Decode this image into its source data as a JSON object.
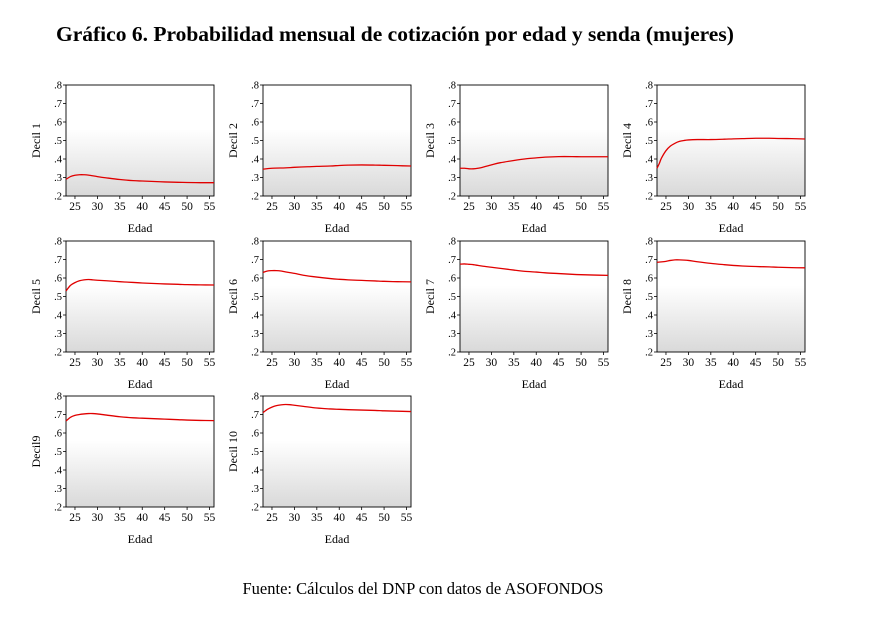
{
  "title": "Gráfico 6. Probabilidad mensual de cotización por edad y senda (mujeres)",
  "source": "Fuente: Cálculos del DNP con datos de ASOFONDOS",
  "colors": {
    "line": "#e00000",
    "gradient_top": "#ffffff",
    "gradient_bottom": "#d9d9d9",
    "frame": "#000000"
  },
  "chart_data": [
    {
      "type": "line",
      "title": "",
      "ylabel": "Decil 1",
      "xlabel": "Edad",
      "xlim": [
        23,
        56
      ],
      "ylim": [
        0.2,
        0.8
      ],
      "xticks": [
        25,
        30,
        35,
        40,
        45,
        50,
        55
      ],
      "xtick_labels": [
        "25",
        "30",
        "35",
        "40",
        "45",
        "50",
        "55"
      ],
      "yticks": [
        0.2,
        0.3,
        0.4,
        0.5,
        0.6,
        0.7,
        0.8
      ],
      "ytick_labels": [
        ".2",
        ".3",
        ".4",
        ".5",
        ".6",
        ".7",
        ".8"
      ],
      "series": [
        {
          "name": "Decil 1",
          "x": [
            23,
            24,
            25,
            26,
            27,
            28,
            30,
            32,
            35,
            38,
            40,
            42,
            45,
            48,
            50,
            53,
            56
          ],
          "y": [
            0.29,
            0.305,
            0.312,
            0.315,
            0.315,
            0.313,
            0.305,
            0.298,
            0.289,
            0.283,
            0.281,
            0.279,
            0.276,
            0.274,
            0.273,
            0.272,
            0.272
          ]
        }
      ]
    },
    {
      "type": "line",
      "title": "",
      "ylabel": "Decil 2",
      "xlabel": "Edad",
      "xlim": [
        23,
        56
      ],
      "ylim": [
        0.2,
        0.8
      ],
      "xticks": [
        25,
        30,
        35,
        40,
        45,
        50,
        55
      ],
      "xtick_labels": [
        "25",
        "30",
        "35",
        "40",
        "45",
        "50",
        "55"
      ],
      "yticks": [
        0.2,
        0.3,
        0.4,
        0.5,
        0.6,
        0.7,
        0.8
      ],
      "ytick_labels": [
        ".2",
        ".3",
        ".4",
        ".5",
        ".6",
        ".7",
        ".8"
      ],
      "series": [
        {
          "name": "Decil 2",
          "x": [
            23,
            25,
            28,
            30,
            33,
            35,
            38,
            40,
            42,
            45,
            48,
            50,
            53,
            56
          ],
          "y": [
            0.345,
            0.35,
            0.352,
            0.355,
            0.358,
            0.36,
            0.362,
            0.365,
            0.367,
            0.368,
            0.367,
            0.366,
            0.364,
            0.362
          ]
        }
      ]
    },
    {
      "type": "line",
      "title": "",
      "ylabel": "Decil 3",
      "xlabel": "Edad",
      "xlim": [
        23,
        56
      ],
      "ylim": [
        0.2,
        0.8
      ],
      "xticks": [
        25,
        30,
        35,
        40,
        45,
        50,
        55
      ],
      "xtick_labels": [
        "25",
        "30",
        "35",
        "40",
        "45",
        "50",
        "55"
      ],
      "yticks": [
        0.2,
        0.3,
        0.4,
        0.5,
        0.6,
        0.7,
        0.8
      ],
      "ytick_labels": [
        ".2",
        ".3",
        ".4",
        ".5",
        ".6",
        ".7",
        ".8"
      ],
      "series": [
        {
          "name": "Decil 3",
          "x": [
            23,
            24,
            25,
            26,
            27,
            28,
            30,
            32,
            35,
            38,
            40,
            42,
            45,
            48,
            50,
            53,
            56
          ],
          "y": [
            0.35,
            0.35,
            0.347,
            0.347,
            0.35,
            0.355,
            0.368,
            0.38,
            0.392,
            0.402,
            0.406,
            0.41,
            0.413,
            0.413,
            0.412,
            0.412,
            0.412
          ]
        }
      ]
    },
    {
      "type": "line",
      "title": "",
      "ylabel": "Decil 4",
      "xlabel": "Edad",
      "xlim": [
        23,
        56
      ],
      "ylim": [
        0.2,
        0.8
      ],
      "xticks": [
        25,
        30,
        35,
        40,
        45,
        50,
        55
      ],
      "xtick_labels": [
        "25",
        "30",
        "35",
        "40",
        "45",
        "50",
        "55"
      ],
      "yticks": [
        0.2,
        0.3,
        0.4,
        0.5,
        0.6,
        0.7,
        0.8
      ],
      "ytick_labels": [
        ".2",
        ".3",
        ".4",
        ".5",
        ".6",
        ".7",
        ".8"
      ],
      "series": [
        {
          "name": "Decil 4",
          "x": [
            23,
            23.5,
            24,
            25,
            26,
            27,
            28,
            29,
            30,
            32,
            35,
            38,
            40,
            42,
            45,
            48,
            50,
            53,
            56
          ],
          "y": [
            0.35,
            0.375,
            0.405,
            0.445,
            0.47,
            0.485,
            0.495,
            0.5,
            0.503,
            0.505,
            0.505,
            0.507,
            0.509,
            0.51,
            0.512,
            0.512,
            0.511,
            0.51,
            0.508
          ]
        }
      ]
    },
    {
      "type": "line",
      "title": "",
      "ylabel": "Decil 5",
      "xlabel": "Edad",
      "xlim": [
        23,
        56
      ],
      "ylim": [
        0.2,
        0.8
      ],
      "xticks": [
        25,
        30,
        35,
        40,
        45,
        50,
        55
      ],
      "xtick_labels": [
        "25",
        "30",
        "35",
        "40",
        "45",
        "50",
        "55"
      ],
      "yticks": [
        0.2,
        0.3,
        0.4,
        0.5,
        0.6,
        0.7,
        0.8
      ],
      "ytick_labels": [
        ".2",
        ".3",
        ".4",
        ".5",
        ".6",
        ".7",
        ".8"
      ],
      "series": [
        {
          "name": "Decil 5",
          "x": [
            23,
            24,
            25,
            26,
            27,
            28,
            29,
            30,
            32,
            35,
            38,
            40,
            42,
            45,
            48,
            50,
            53,
            56
          ],
          "y": [
            0.53,
            0.56,
            0.575,
            0.585,
            0.59,
            0.592,
            0.59,
            0.588,
            0.585,
            0.58,
            0.576,
            0.573,
            0.571,
            0.568,
            0.566,
            0.564,
            0.563,
            0.562
          ]
        }
      ]
    },
    {
      "type": "line",
      "title": "",
      "ylabel": "Decil 6",
      "xlabel": "Edad",
      "xlim": [
        23,
        56
      ],
      "ylim": [
        0.2,
        0.8
      ],
      "xticks": [
        25,
        30,
        35,
        40,
        45,
        50,
        55
      ],
      "xtick_labels": [
        "25",
        "30",
        "35",
        "40",
        "45",
        "50",
        "55"
      ],
      "yticks": [
        0.2,
        0.3,
        0.4,
        0.5,
        0.6,
        0.7,
        0.8
      ],
      "ytick_labels": [
        ".2",
        ".3",
        ".4",
        ".5",
        ".6",
        ".7",
        ".8"
      ],
      "series": [
        {
          "name": "Decil 6",
          "x": [
            23,
            24,
            25,
            26,
            27,
            28,
            30,
            32,
            35,
            38,
            40,
            42,
            45,
            48,
            50,
            53,
            56
          ],
          "y": [
            0.63,
            0.638,
            0.64,
            0.64,
            0.638,
            0.633,
            0.625,
            0.615,
            0.605,
            0.597,
            0.593,
            0.59,
            0.587,
            0.584,
            0.582,
            0.58,
            0.579
          ]
        }
      ]
    },
    {
      "type": "line",
      "title": "",
      "ylabel": "Decil 7",
      "xlabel": "Edad",
      "xlim": [
        23,
        56
      ],
      "ylim": [
        0.2,
        0.8
      ],
      "xticks": [
        25,
        30,
        35,
        40,
        45,
        50,
        55
      ],
      "xtick_labels": [
        "25",
        "30",
        "35",
        "40",
        "45",
        "50",
        "55"
      ],
      "yticks": [
        0.2,
        0.3,
        0.4,
        0.5,
        0.6,
        0.7,
        0.8
      ],
      "ytick_labels": [
        ".2",
        ".3",
        ".4",
        ".5",
        ".6",
        ".7",
        ".8"
      ],
      "series": [
        {
          "name": "Decil 7",
          "x": [
            23,
            24,
            25,
            26,
            27,
            28,
            30,
            32,
            35,
            38,
            40,
            42,
            45,
            48,
            50,
            53,
            56
          ],
          "y": [
            0.675,
            0.676,
            0.674,
            0.672,
            0.668,
            0.664,
            0.658,
            0.652,
            0.643,
            0.635,
            0.632,
            0.628,
            0.624,
            0.62,
            0.618,
            0.616,
            0.614
          ]
        }
      ]
    },
    {
      "type": "line",
      "title": "",
      "ylabel": "Decil 8",
      "xlabel": "Edad",
      "xlim": [
        23,
        56
      ],
      "ylim": [
        0.2,
        0.8
      ],
      "xticks": [
        25,
        30,
        35,
        40,
        45,
        50,
        55
      ],
      "xtick_labels": [
        "25",
        "30",
        "35",
        "40",
        "45",
        "50",
        "55"
      ],
      "yticks": [
        0.2,
        0.3,
        0.4,
        0.5,
        0.6,
        0.7,
        0.8
      ],
      "ytick_labels": [
        ".2",
        ".3",
        ".4",
        ".5",
        ".6",
        ".7",
        ".8"
      ],
      "series": [
        {
          "name": "Decil 8",
          "x": [
            23,
            24,
            25,
            26,
            27,
            28,
            30,
            32,
            35,
            38,
            40,
            42,
            45,
            48,
            50,
            53,
            56
          ],
          "y": [
            0.685,
            0.687,
            0.69,
            0.695,
            0.698,
            0.698,
            0.695,
            0.688,
            0.679,
            0.672,
            0.668,
            0.665,
            0.662,
            0.66,
            0.658,
            0.656,
            0.655
          ]
        }
      ]
    },
    {
      "type": "line",
      "title": "",
      "ylabel": "Decil9",
      "xlabel": "Edad",
      "xlim": [
        23,
        56
      ],
      "ylim": [
        0.2,
        0.8
      ],
      "xticks": [
        25,
        30,
        35,
        40,
        45,
        50,
        55
      ],
      "xtick_labels": [
        "25",
        "30",
        "35",
        "40",
        "45",
        "50",
        "55"
      ],
      "yticks": [
        0.2,
        0.3,
        0.4,
        0.5,
        0.6,
        0.7,
        0.8
      ],
      "ytick_labels": [
        ".2",
        ".3",
        ".4",
        ".5",
        ".6",
        ".7",
        ".8"
      ],
      "series": [
        {
          "name": "Decil9",
          "x": [
            23,
            24,
            25,
            26,
            27,
            28,
            29,
            30,
            32,
            35,
            38,
            40,
            42,
            45,
            48,
            50,
            53,
            56
          ],
          "y": [
            0.665,
            0.685,
            0.695,
            0.7,
            0.703,
            0.705,
            0.705,
            0.703,
            0.697,
            0.688,
            0.682,
            0.68,
            0.678,
            0.675,
            0.672,
            0.67,
            0.668,
            0.667
          ]
        }
      ]
    },
    {
      "type": "line",
      "title": "",
      "ylabel": "Decil 10",
      "xlabel": "Edad",
      "xlim": [
        23,
        56
      ],
      "ylim": [
        0.2,
        0.8
      ],
      "xticks": [
        25,
        30,
        35,
        40,
        45,
        50,
        55
      ],
      "xtick_labels": [
        "25",
        "30",
        "35",
        "40",
        "45",
        "50",
        "55"
      ],
      "yticks": [
        0.2,
        0.3,
        0.4,
        0.5,
        0.6,
        0.7,
        0.8
      ],
      "ytick_labels": [
        ".2",
        ".3",
        ".4",
        ".5",
        ".6",
        ".7",
        ".8"
      ],
      "series": [
        {
          "name": "Decil 10",
          "x": [
            23,
            24,
            25,
            26,
            27,
            28,
            29,
            30,
            32,
            35,
            38,
            40,
            42,
            45,
            48,
            50,
            53,
            56
          ],
          "y": [
            0.71,
            0.728,
            0.74,
            0.748,
            0.752,
            0.754,
            0.753,
            0.75,
            0.744,
            0.735,
            0.73,
            0.728,
            0.726,
            0.724,
            0.722,
            0.72,
            0.718,
            0.716
          ]
        }
      ]
    }
  ]
}
